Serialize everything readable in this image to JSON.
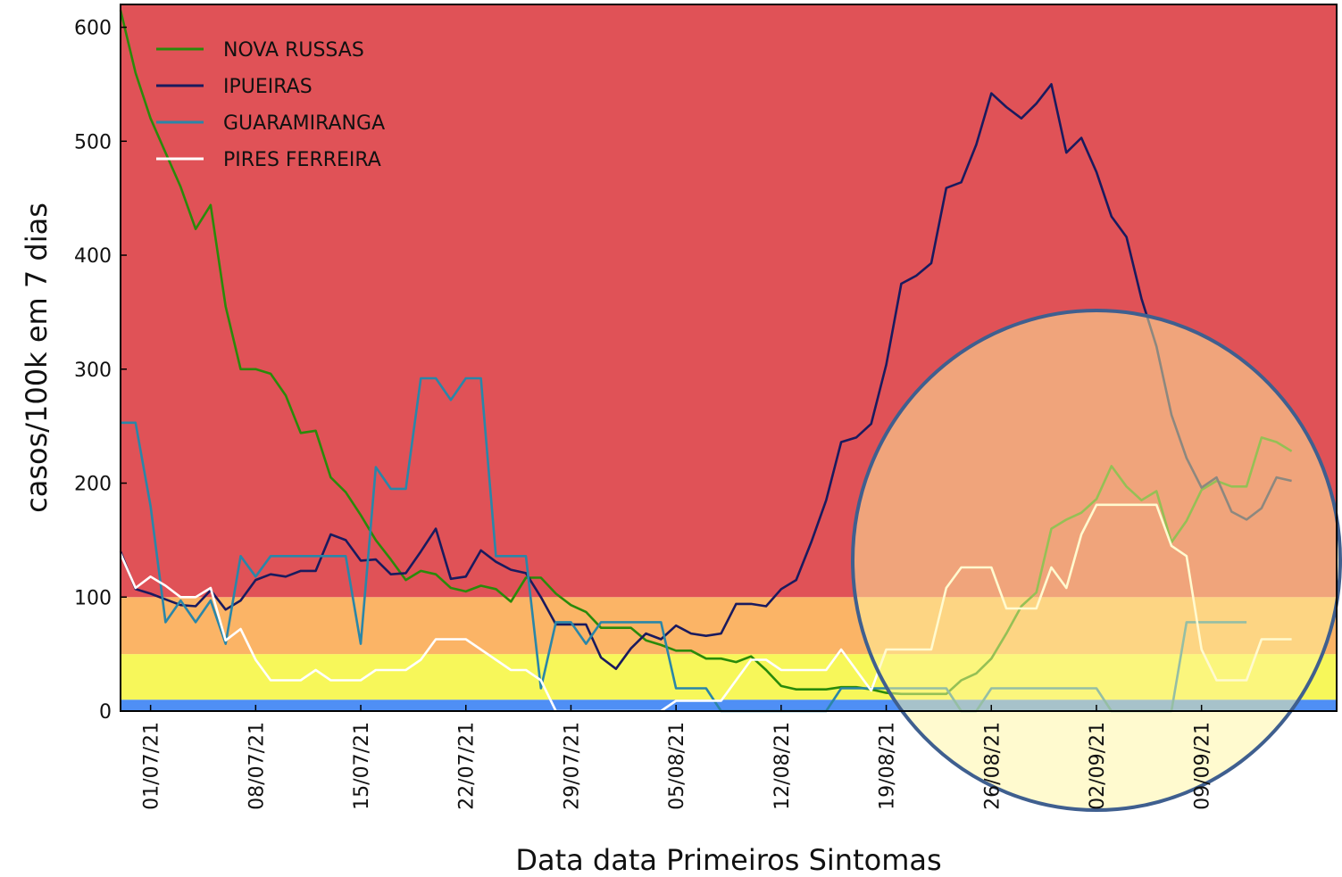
{
  "chart_data": {
    "type": "line",
    "xlabel": "Data data Primeiros Sintomas",
    "ylabel": "casos/100k em 7 dias",
    "xlim": [
      "29/06/21",
      "18/09/21"
    ],
    "xticks": [
      "01/07/21",
      "08/07/21",
      "15/07/21",
      "22/07/21",
      "29/07/21",
      "05/08/21",
      "12/08/21",
      "19/08/21",
      "26/08/21",
      "02/09/21",
      "09/09/21"
    ],
    "ylim": [
      0,
      620
    ],
    "yticks": [
      0,
      100,
      200,
      300,
      400,
      500,
      600
    ],
    "bands": [
      {
        "from": 0,
        "to": 10,
        "color": "#4f8ff5"
      },
      {
        "from": 10,
        "to": 50,
        "color": "#f7f75a"
      },
      {
        "from": 50,
        "to": 100,
        "color": "#fbb466"
      },
      {
        "from": 100,
        "to": 620,
        "color": "#e05257"
      }
    ],
    "legend": "upper left",
    "start": "29/06/21",
    "series": [
      {
        "name": "NOVA RUSSAS",
        "color": "#2a8a0a",
        "values": [
          615,
          560,
          520,
          490,
          460,
          423,
          444,
          355,
          300,
          300,
          296,
          277,
          244,
          246,
          205,
          192,
          172,
          150,
          133,
          115,
          123,
          120,
          108,
          105,
          110,
          107,
          96,
          117,
          117,
          103,
          93,
          87,
          73,
          73,
          73,
          62,
          58,
          53,
          53,
          46,
          46,
          43,
          48,
          36,
          22,
          19,
          19,
          19,
          21,
          21,
          19,
          16,
          15,
          15,
          15,
          15,
          27,
          33,
          46,
          68,
          92,
          104,
          160,
          168,
          174,
          186,
          215,
          197,
          185,
          193,
          148,
          167,
          194,
          202,
          197,
          197,
          240,
          236,
          228
        ]
      },
      {
        "name": "IPUEIRAS",
        "color": "#1a1a5e",
        "values": [
          140,
          107,
          103,
          98,
          93,
          92,
          106,
          89,
          97,
          115,
          120,
          118,
          123,
          123,
          155,
          150,
          132,
          133,
          120,
          121,
          140,
          160,
          116,
          118,
          141,
          131,
          124,
          121,
          100,
          76,
          76,
          76,
          47,
          37,
          55,
          68,
          63,
          75,
          68,
          66,
          68,
          94,
          94,
          92,
          107,
          115,
          148,
          185,
          236,
          240,
          252,
          304,
          375,
          382,
          393,
          459,
          464,
          497,
          542,
          530,
          520,
          533,
          550,
          490,
          503,
          473,
          434,
          416,
          362,
          320,
          260,
          222,
          196,
          205,
          175,
          168,
          178,
          205,
          202
        ]
      },
      {
        "name": "GUARAMIRANGA",
        "color": "#2a86a8",
        "values": [
          253,
          253,
          180,
          78,
          97,
          78,
          97,
          59,
          136,
          118,
          136,
          136,
          136,
          136,
          136,
          136,
          59,
          214,
          195,
          195,
          292,
          292,
          273,
          292,
          292,
          136,
          136,
          136,
          20,
          78,
          78,
          59,
          78,
          78,
          78,
          78,
          78,
          20,
          20,
          20,
          0,
          0,
          0,
          0,
          0,
          0,
          0,
          0,
          20,
          20,
          20,
          20,
          20,
          20,
          20,
          20,
          0,
          0,
          20,
          20,
          20,
          20,
          20,
          20,
          20,
          20,
          0,
          0,
          0,
          0,
          0,
          78,
          78,
          78,
          78,
          78,
          null,
          null,
          null
        ]
      },
      {
        "name": "PIRES FERREIRA",
        "color": "#ffffff",
        "values": [
          138,
          108,
          118,
          110,
          100,
          100,
          108,
          62,
          72,
          45,
          27,
          27,
          27,
          36,
          27,
          27,
          27,
          36,
          36,
          36,
          45,
          63,
          63,
          63,
          54,
          45,
          36,
          36,
          27,
          0,
          0,
          0,
          0,
          0,
          0,
          0,
          0,
          9,
          9,
          9,
          9,
          27,
          45,
          45,
          36,
          36,
          36,
          36,
          54,
          36,
          18,
          54,
          54,
          54,
          54,
          108,
          126,
          126,
          126,
          90,
          90,
          90,
          126,
          108,
          155,
          181,
          181,
          181,
          181,
          181,
          145,
          136,
          54,
          27,
          27,
          27,
          63,
          63,
          63
        ]
      }
    ]
  }
}
